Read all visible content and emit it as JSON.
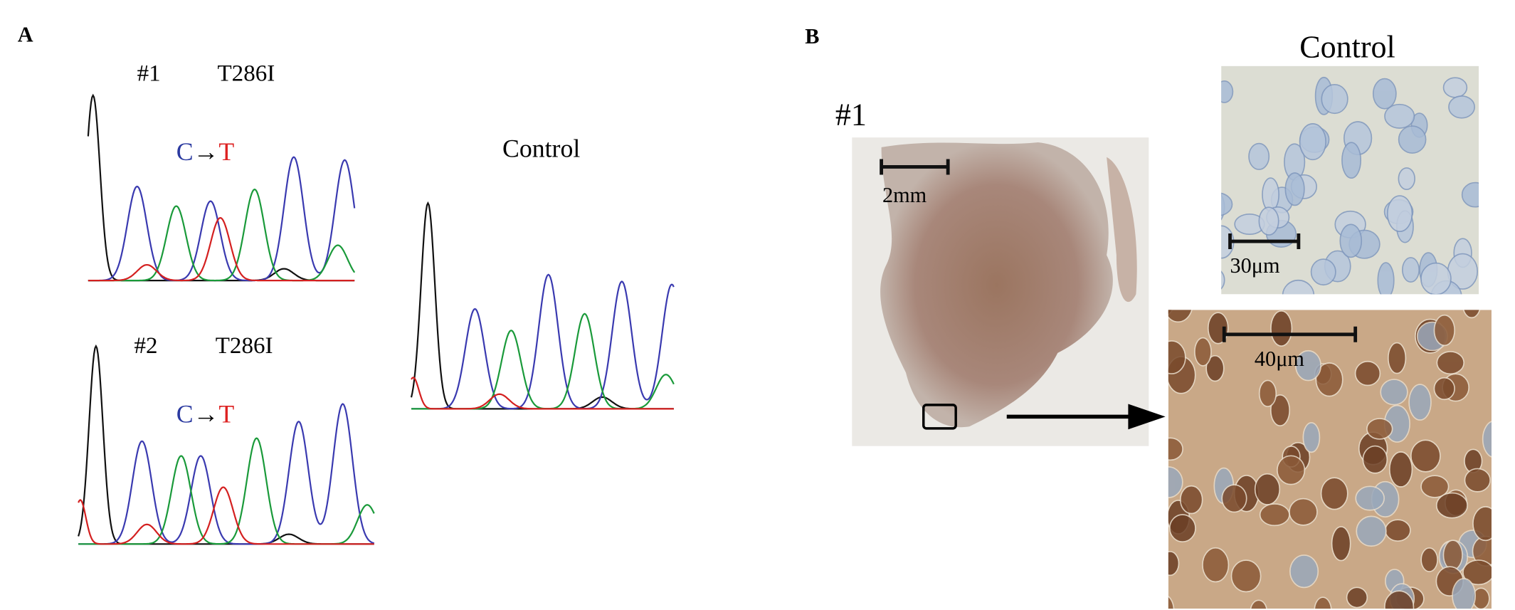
{
  "panel_a": {
    "label": "A",
    "samples": [
      {
        "id": "#1",
        "mutation": "T286I",
        "change": {
          "from": "C",
          "arrow": "→",
          "to": "T"
        }
      },
      {
        "id": "#2",
        "mutation": "T286I",
        "change": {
          "from": "C",
          "arrow": "→",
          "to": "T"
        }
      }
    ],
    "control": "Control"
  },
  "panel_b": {
    "label": "B",
    "sample": "#1",
    "control": "Control",
    "scale_bars": [
      "2mm",
      "30μm",
      "40μm"
    ]
  }
}
